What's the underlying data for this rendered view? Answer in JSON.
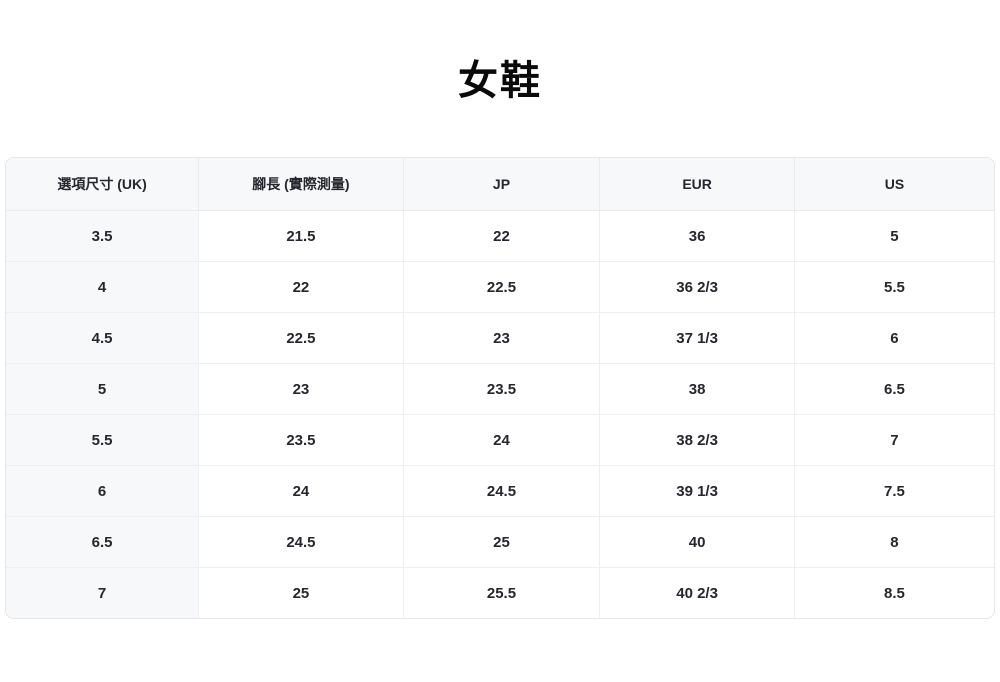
{
  "title": "女鞋",
  "table": {
    "headers": [
      "選項尺寸 (UK)",
      "腳長 (實際測量)",
      "JP",
      "EUR",
      "US"
    ],
    "rows": [
      [
        "3.5",
        "21.5",
        "22",
        "36",
        "5"
      ],
      [
        "4",
        "22",
        "22.5",
        "36 2/3",
        "5.5"
      ],
      [
        "4.5",
        "22.5",
        "23",
        "37 1/3",
        "6"
      ],
      [
        "5",
        "23",
        "23.5",
        "38",
        "6.5"
      ],
      [
        "5.5",
        "23.5",
        "24",
        "38 2/3",
        "7"
      ],
      [
        "6",
        "24",
        "24.5",
        "39 1/3",
        "7.5"
      ],
      [
        "6.5",
        "24.5",
        "25",
        "40",
        "8"
      ],
      [
        "7",
        "25",
        "25.5",
        "40 2/3",
        "8.5"
      ]
    ]
  },
  "colors": {
    "title_text": "#0a0a0a",
    "cell_text": "#26262e",
    "header_bg": "#f7f8f9",
    "first_column_bg": "#f7f8f9",
    "outer_border": "#e4e6e9",
    "inner_border": "#eceef1",
    "page_bg": "#ffffff"
  }
}
